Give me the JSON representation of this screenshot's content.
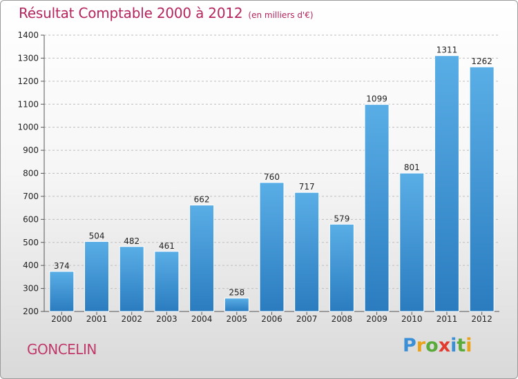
{
  "title": {
    "main": "Résultat Comptable 2000 à 2012",
    "sub": "(en milliers d'€)"
  },
  "city": "GONCELIN",
  "logo": {
    "letters": [
      "P",
      "r",
      "o",
      "x",
      "i",
      "t",
      "i"
    ],
    "colors": [
      "#3b8fd6",
      "#e9a21a",
      "#5aab3c",
      "#e23b2e",
      "#3b8fd6",
      "#5aab3c",
      "#e9a21a"
    ]
  },
  "chart_data": {
    "type": "bar",
    "categories": [
      "2000",
      "2001",
      "2002",
      "2003",
      "2004",
      "2005",
      "2006",
      "2007",
      "2008",
      "2009",
      "2010",
      "2011",
      "2012"
    ],
    "values": [
      374,
      504,
      482,
      461,
      662,
      258,
      760,
      717,
      579,
      1099,
      801,
      1311,
      1262
    ],
    "ylim": [
      200,
      1400
    ],
    "yticks": [
      200,
      300,
      400,
      500,
      600,
      700,
      800,
      900,
      1000,
      1100,
      1200,
      1300,
      1400
    ],
    "grid": true,
    "bar_color_top": "#5aaee6",
    "bar_color_bottom": "#2a7cbf"
  }
}
